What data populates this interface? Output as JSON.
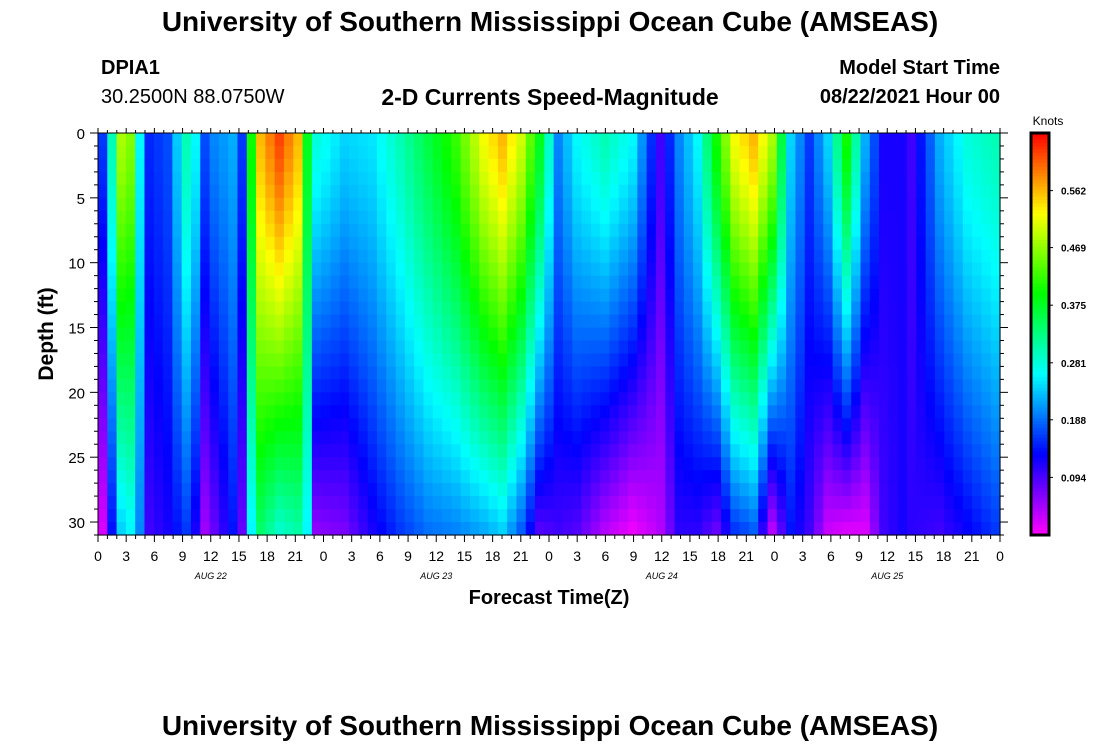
{
  "header": {
    "title": "University of Southern Mississippi Ocean Cube (AMSEAS)",
    "footer_title": "University of Southern Mississippi Ocean Cube (AMSEAS)",
    "station": "DPIA1",
    "location": "30.2500N  88.0750W",
    "subtitle": "2-D Currents Speed-Magnitude",
    "start_label": "Model Start Time",
    "start_value": "08/22/2021 Hour 00"
  },
  "chart_data": {
    "type": "heatmap",
    "title": "2-D Currents Speed-Magnitude",
    "xlabel": "Forecast Time(Z)",
    "ylabel": "Depth (ft)",
    "x_tick_labels": [
      "0",
      "3",
      "6",
      "9",
      "12",
      "15",
      "18",
      "21",
      "0",
      "3",
      "6",
      "9",
      "12",
      "15",
      "18",
      "21",
      "0",
      "3",
      "6",
      "9",
      "12",
      "15",
      "18",
      "21",
      "0",
      "3",
      "6",
      "9",
      "12",
      "15",
      "18",
      "21",
      "0"
    ],
    "day_labels": [
      "AUG 22",
      "AUG 23",
      "AUG 24",
      "AUG 25"
    ],
    "y_ticks": [
      0,
      5,
      10,
      15,
      20,
      25,
      30
    ],
    "ylim": [
      0,
      31
    ],
    "y_inverted": true,
    "colorbar": {
      "title": "Knots",
      "ticks": [
        "0.562",
        "0.469",
        "0.375",
        "0.281",
        "0.188",
        "0.094"
      ],
      "tick_values": [
        0.562,
        0.469,
        0.375,
        0.281,
        0.188,
        0.094
      ],
      "range": [
        0,
        0.656
      ]
    },
    "column_profiles": [
      {
        "t": 0,
        "top": 0.16,
        "bottom": 0.02
      },
      {
        "t": 1,
        "top": 0.3,
        "bottom": 0.14
      },
      {
        "t": 2,
        "top": 0.48,
        "bottom": 0.24
      },
      {
        "t": 3,
        "top": 0.46,
        "bottom": 0.26
      },
      {
        "t": 4,
        "top": 0.26,
        "bottom": 0.2
      },
      {
        "t": 5,
        "top": 0.15,
        "bottom": 0.1
      },
      {
        "t": 7,
        "top": 0.17,
        "bottom": 0.12
      },
      {
        "t": 9,
        "top": 0.3,
        "bottom": 0.16
      },
      {
        "t": 10,
        "top": 0.26,
        "bottom": 0.12
      },
      {
        "t": 11,
        "top": 0.17,
        "bottom": 0.05
      },
      {
        "t": 12,
        "top": 0.2,
        "bottom": 0.08
      },
      {
        "t": 14,
        "top": 0.22,
        "bottom": 0.14
      },
      {
        "t": 15,
        "top": 0.16,
        "bottom": 0.08
      },
      {
        "t": 16,
        "top": 0.4,
        "bottom": 0.26
      },
      {
        "t": 17,
        "top": 0.56,
        "bottom": 0.34
      },
      {
        "t": 19,
        "top": 0.62,
        "bottom": 0.29
      },
      {
        "t": 21,
        "top": 0.56,
        "bottom": 0.31
      },
      {
        "t": 22,
        "top": 0.38,
        "bottom": 0.26
      },
      {
        "t": 23,
        "top": 0.28,
        "bottom": 0.06
      },
      {
        "t": 26,
        "top": 0.24,
        "bottom": 0.07
      },
      {
        "t": 29,
        "top": 0.25,
        "bottom": 0.12
      },
      {
        "t": 32,
        "top": 0.3,
        "bottom": 0.16
      },
      {
        "t": 35,
        "top": 0.36,
        "bottom": 0.19
      },
      {
        "t": 38,
        "top": 0.42,
        "bottom": 0.2
      },
      {
        "t": 41,
        "top": 0.52,
        "bottom": 0.22
      },
      {
        "t": 43,
        "top": 0.56,
        "bottom": 0.24
      },
      {
        "t": 45,
        "top": 0.5,
        "bottom": 0.18
      },
      {
        "t": 47,
        "top": 0.38,
        "bottom": 0.09
      },
      {
        "t": 49,
        "top": 0.2,
        "bottom": 0.1
      },
      {
        "t": 51,
        "top": 0.26,
        "bottom": 0.09
      },
      {
        "t": 54,
        "top": 0.3,
        "bottom": 0.04
      },
      {
        "t": 57,
        "top": 0.26,
        "bottom": 0.01
      },
      {
        "t": 60,
        "top": 0.1,
        "bottom": 0.04
      },
      {
        "t": 62,
        "top": 0.2,
        "bottom": 0.11
      },
      {
        "t": 64,
        "top": 0.26,
        "bottom": 0.11
      },
      {
        "t": 66,
        "top": 0.4,
        "bottom": 0.08
      },
      {
        "t": 68,
        "top": 0.52,
        "bottom": 0.16
      },
      {
        "t": 70,
        "top": 0.56,
        "bottom": 0.18
      },
      {
        "t": 72,
        "top": 0.48,
        "bottom": 0.04
      },
      {
        "t": 74,
        "top": 0.24,
        "bottom": 0.14
      },
      {
        "t": 76,
        "top": 0.16,
        "bottom": 0.1
      },
      {
        "t": 78,
        "top": 0.24,
        "bottom": 0.03
      },
      {
        "t": 80,
        "top": 0.4,
        "bottom": 0.02
      },
      {
        "t": 82,
        "top": 0.22,
        "bottom": 0.02
      },
      {
        "t": 84,
        "top": 0.12,
        "bottom": 0.1
      },
      {
        "t": 86,
        "top": 0.12,
        "bottom": 0.12
      },
      {
        "t": 87,
        "top": 0.1,
        "bottom": 0.11
      },
      {
        "t": 90,
        "top": 0.22,
        "bottom": 0.1
      },
      {
        "t": 93,
        "top": 0.28,
        "bottom": 0.13
      },
      {
        "t": 96,
        "top": 0.3,
        "bottom": 0.16
      }
    ]
  }
}
